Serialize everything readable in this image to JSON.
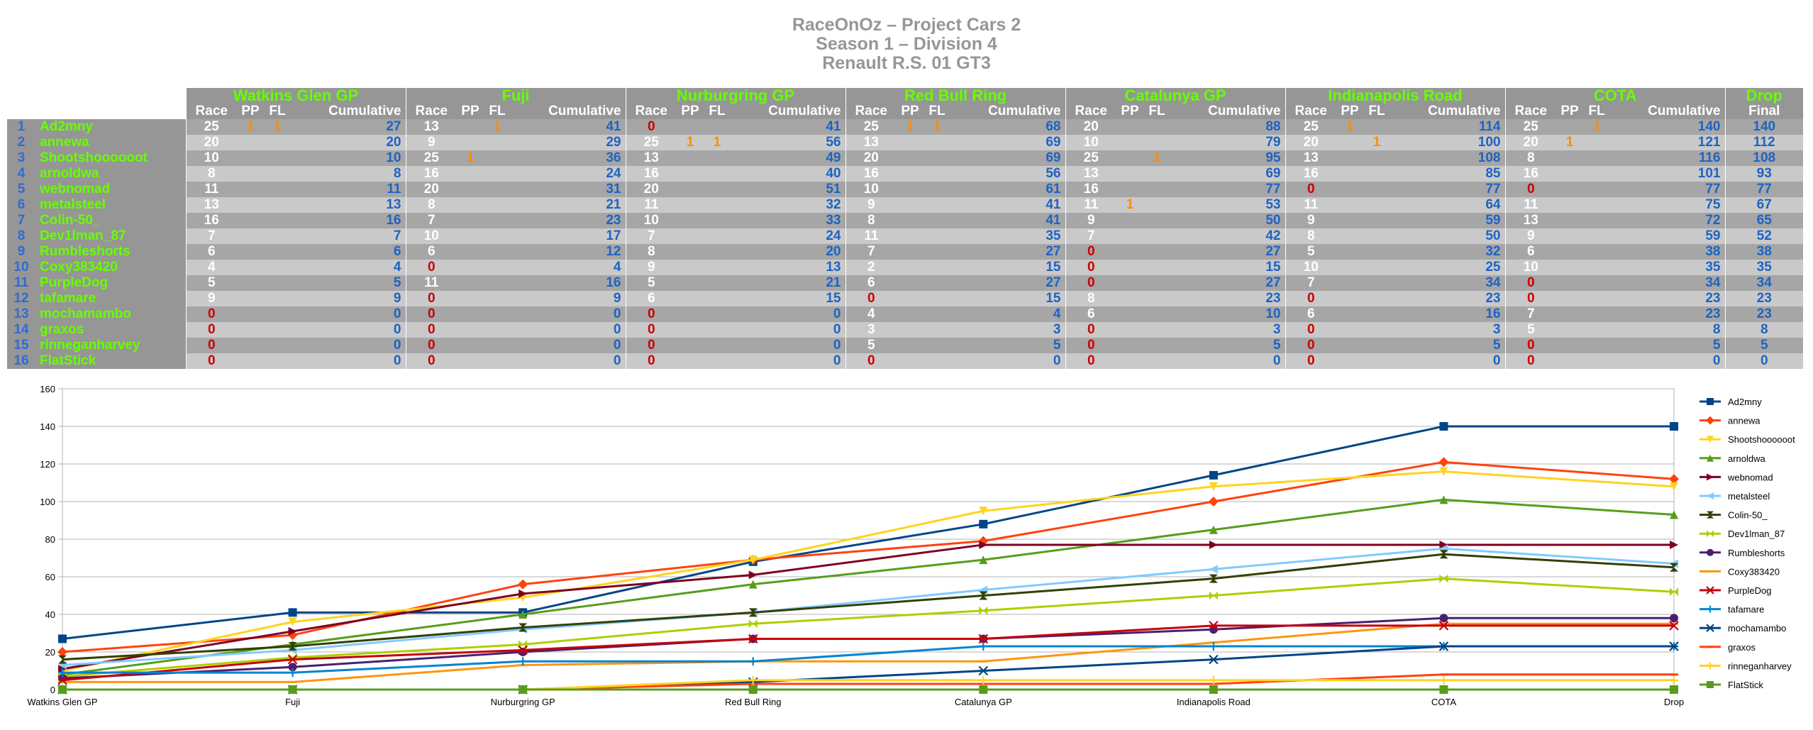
{
  "titles": [
    "RaceOnOz – Project Cars 2",
    "Season 1 – Division 4",
    "Renault R.S. 01 GT3"
  ],
  "table": {
    "events": [
      "Watkins Glen GP",
      "Fuji",
      "Nurburgring GP",
      "Red Bull Ring",
      "Catalunya GP",
      "Indianapolis Road",
      "COTA"
    ],
    "drop_header": "Drop",
    "sub_headers": {
      "race": "Race",
      "pp": "PP",
      "fl": "FL",
      "cumulative": "Cumulative",
      "final": "Final"
    },
    "rows": [
      {
        "pos": "1",
        "name": "Ad2mny",
        "events": [
          [
            "25",
            "1",
            "1",
            "27"
          ],
          [
            "13",
            "",
            "1",
            "41"
          ],
          [
            "0",
            "",
            "",
            "41"
          ],
          [
            "25",
            "1",
            "1",
            "68"
          ],
          [
            "20",
            "",
            "",
            "88"
          ],
          [
            "25",
            "1",
            "",
            "114"
          ],
          [
            "25",
            "",
            "1",
            "140"
          ]
        ],
        "final": "140"
      },
      {
        "pos": "2",
        "name": "annewa",
        "events": [
          [
            "20",
            "",
            "",
            "20"
          ],
          [
            "9",
            "",
            "",
            "29"
          ],
          [
            "25",
            "1",
            "1",
            "56"
          ],
          [
            "13",
            "",
            "",
            "69"
          ],
          [
            "10",
            "",
            "",
            "79"
          ],
          [
            "20",
            "",
            "1",
            "100"
          ],
          [
            "20",
            "1",
            "",
            "121"
          ]
        ],
        "final": "112"
      },
      {
        "pos": "3",
        "name": "Shootshoooooot",
        "events": [
          [
            "10",
            "",
            "",
            "10"
          ],
          [
            "25",
            "1",
            "",
            "36"
          ],
          [
            "13",
            "",
            "",
            "49"
          ],
          [
            "20",
            "",
            "",
            "69"
          ],
          [
            "25",
            "",
            "1",
            "95"
          ],
          [
            "13",
            "",
            "",
            "108"
          ],
          [
            "8",
            "",
            "",
            "116"
          ]
        ],
        "final": "108"
      },
      {
        "pos": "4",
        "name": "arnoldwa",
        "events": [
          [
            "8",
            "",
            "",
            "8"
          ],
          [
            "16",
            "",
            "",
            "24"
          ],
          [
            "16",
            "",
            "",
            "40"
          ],
          [
            "16",
            "",
            "",
            "56"
          ],
          [
            "13",
            "",
            "",
            "69"
          ],
          [
            "16",
            "",
            "",
            "85"
          ],
          [
            "16",
            "",
            "",
            "101"
          ]
        ],
        "final": "93"
      },
      {
        "pos": "5",
        "name": "webnomad",
        "events": [
          [
            "11",
            "",
            "",
            "11"
          ],
          [
            "20",
            "",
            "",
            "31"
          ],
          [
            "20",
            "",
            "",
            "51"
          ],
          [
            "10",
            "",
            "",
            "61"
          ],
          [
            "16",
            "",
            "",
            "77"
          ],
          [
            "0",
            "",
            "",
            "77"
          ],
          [
            "0",
            "",
            "",
            "77"
          ]
        ],
        "final": "77"
      },
      {
        "pos": "6",
        "name": "metalsteel",
        "events": [
          [
            "13",
            "",
            "",
            "13"
          ],
          [
            "8",
            "",
            "",
            "21"
          ],
          [
            "11",
            "",
            "",
            "32"
          ],
          [
            "9",
            "",
            "",
            "41"
          ],
          [
            "11",
            "1",
            "",
            "53"
          ],
          [
            "11",
            "",
            "",
            "64"
          ],
          [
            "11",
            "",
            "",
            "75"
          ]
        ],
        "final": "67"
      },
      {
        "pos": "7",
        "name": "Colin-50_",
        "events": [
          [
            "16",
            "",
            "",
            "16"
          ],
          [
            "7",
            "",
            "",
            "23"
          ],
          [
            "10",
            "",
            "",
            "33"
          ],
          [
            "8",
            "",
            "",
            "41"
          ],
          [
            "9",
            "",
            "",
            "50"
          ],
          [
            "9",
            "",
            "",
            "59"
          ],
          [
            "13",
            "",
            "",
            "72"
          ]
        ],
        "final": "65"
      },
      {
        "pos": "8",
        "name": "Dev1lman_87",
        "events": [
          [
            "7",
            "",
            "",
            "7"
          ],
          [
            "10",
            "",
            "",
            "17"
          ],
          [
            "7",
            "",
            "",
            "24"
          ],
          [
            "11",
            "",
            "",
            "35"
          ],
          [
            "7",
            "",
            "",
            "42"
          ],
          [
            "8",
            "",
            "",
            "50"
          ],
          [
            "9",
            "",
            "",
            "59"
          ]
        ],
        "final": "52"
      },
      {
        "pos": "9",
        "name": "Rumbleshorts",
        "events": [
          [
            "6",
            "",
            "",
            "6"
          ],
          [
            "6",
            "",
            "",
            "12"
          ],
          [
            "8",
            "",
            "",
            "20"
          ],
          [
            "7",
            "",
            "",
            "27"
          ],
          [
            "0",
            "",
            "",
            "27"
          ],
          [
            "5",
            "",
            "",
            "32"
          ],
          [
            "6",
            "",
            "",
            "38"
          ]
        ],
        "final": "38"
      },
      {
        "pos": "10",
        "name": "Coxy383420",
        "events": [
          [
            "4",
            "",
            "",
            "4"
          ],
          [
            "0",
            "",
            "",
            "4"
          ],
          [
            "9",
            "",
            "",
            "13"
          ],
          [
            "2",
            "",
            "",
            "15"
          ],
          [
            "0",
            "",
            "",
            "15"
          ],
          [
            "10",
            "",
            "",
            "25"
          ],
          [
            "10",
            "",
            "",
            "35"
          ]
        ],
        "final": "35"
      },
      {
        "pos": "11",
        "name": "PurpleDog",
        "events": [
          [
            "5",
            "",
            "",
            "5"
          ],
          [
            "11",
            "",
            "",
            "16"
          ],
          [
            "5",
            "",
            "",
            "21"
          ],
          [
            "6",
            "",
            "",
            "27"
          ],
          [
            "0",
            "",
            "",
            "27"
          ],
          [
            "7",
            "",
            "",
            "34"
          ],
          [
            "0",
            "",
            "",
            "34"
          ]
        ],
        "final": "34"
      },
      {
        "pos": "12",
        "name": "tafamare",
        "events": [
          [
            "9",
            "",
            "",
            "9"
          ],
          [
            "0",
            "",
            "",
            "9"
          ],
          [
            "6",
            "",
            "",
            "15"
          ],
          [
            "0",
            "",
            "",
            "15"
          ],
          [
            "8",
            "",
            "",
            "23"
          ],
          [
            "0",
            "",
            "",
            "23"
          ],
          [
            "0",
            "",
            "",
            "23"
          ]
        ],
        "final": "23"
      },
      {
        "pos": "13",
        "name": "mochamambo",
        "events": [
          [
            "0",
            "",
            "",
            "0"
          ],
          [
            "0",
            "",
            "",
            "0"
          ],
          [
            "0",
            "",
            "",
            "0"
          ],
          [
            "4",
            "",
            "",
            "4"
          ],
          [
            "6",
            "",
            "",
            "10"
          ],
          [
            "6",
            "",
            "",
            "16"
          ],
          [
            "7",
            "",
            "",
            "23"
          ]
        ],
        "final": "23"
      },
      {
        "pos": "14",
        "name": "graxos",
        "events": [
          [
            "0",
            "",
            "",
            "0"
          ],
          [
            "0",
            "",
            "",
            "0"
          ],
          [
            "0",
            "",
            "",
            "0"
          ],
          [
            "3",
            "",
            "",
            "3"
          ],
          [
            "0",
            "",
            "",
            "3"
          ],
          [
            "0",
            "",
            "",
            "3"
          ],
          [
            "5",
            "",
            "",
            "8"
          ]
        ],
        "final": "8"
      },
      {
        "pos": "15",
        "name": "rinneganharvey",
        "events": [
          [
            "0",
            "",
            "",
            "0"
          ],
          [
            "0",
            "",
            "",
            "0"
          ],
          [
            "0",
            "",
            "",
            "0"
          ],
          [
            "5",
            "",
            "",
            "5"
          ],
          [
            "0",
            "",
            "",
            "5"
          ],
          [
            "0",
            "",
            "",
            "5"
          ],
          [
            "0",
            "",
            "",
            "5"
          ]
        ],
        "final": "5"
      },
      {
        "pos": "16",
        "name": "FlatStick",
        "events": [
          [
            "0",
            "",
            "",
            "0"
          ],
          [
            "0",
            "",
            "",
            "0"
          ],
          [
            "0",
            "",
            "",
            "0"
          ],
          [
            "0",
            "",
            "",
            "0"
          ],
          [
            "0",
            "",
            "",
            "0"
          ],
          [
            "0",
            "",
            "",
            "0"
          ],
          [
            "0",
            "",
            "",
            "0"
          ]
        ],
        "final": "0"
      }
    ]
  },
  "chart_data": {
    "type": "line",
    "x": [
      "Watkins Glen GP",
      "Fuji",
      "Nurburgring GP",
      "Red Bull Ring",
      "Catalunya GP",
      "Indianapolis Road",
      "COTA",
      "Drop"
    ],
    "ylim": [
      0,
      160
    ],
    "yticks": [
      0,
      20,
      40,
      60,
      80,
      100,
      120,
      140,
      160
    ],
    "grid": true,
    "legend": "right",
    "series": [
      {
        "name": "Ad2mny",
        "values": [
          27,
          41,
          41,
          68,
          88,
          114,
          140,
          140
        ],
        "color": "#004586",
        "marker": "square"
      },
      {
        "name": "annewa",
        "values": [
          20,
          29,
          56,
          69,
          79,
          100,
          121,
          112
        ],
        "color": "#ff420e",
        "marker": "diamond"
      },
      {
        "name": "Shootshoooooot",
        "values": [
          10,
          36,
          49,
          69,
          95,
          108,
          116,
          108
        ],
        "color": "#ffd320",
        "marker": "triangle-down"
      },
      {
        "name": "arnoldwa",
        "values": [
          8,
          24,
          40,
          56,
          69,
          85,
          101,
          93
        ],
        "color": "#579d1c",
        "marker": "triangle-up"
      },
      {
        "name": "webnomad",
        "values": [
          11,
          31,
          51,
          61,
          77,
          77,
          77,
          77
        ],
        "color": "#7e0021",
        "marker": "triangle-right"
      },
      {
        "name": "metalsteel",
        "values": [
          13,
          21,
          32,
          41,
          53,
          64,
          75,
          67
        ],
        "color": "#83caff",
        "marker": "triangle-left"
      },
      {
        "name": "Colin-50_",
        "values": [
          16,
          23,
          33,
          41,
          50,
          59,
          72,
          65
        ],
        "color": "#314004",
        "marker": "hourglass"
      },
      {
        "name": "Dev1lman_87",
        "values": [
          7,
          17,
          24,
          35,
          42,
          50,
          59,
          52
        ],
        "color": "#aecf00",
        "marker": "bowtie"
      },
      {
        "name": "Rumbleshorts",
        "values": [
          6,
          12,
          20,
          27,
          27,
          32,
          38,
          38
        ],
        "color": "#4b1f6f",
        "marker": "circle"
      },
      {
        "name": "Coxy383420",
        "values": [
          4,
          4,
          13,
          15,
          15,
          25,
          35,
          35
        ],
        "color": "#ff950e",
        "marker": "dash"
      },
      {
        "name": "PurpleDog",
        "values": [
          5,
          16,
          21,
          27,
          27,
          34,
          34,
          34
        ],
        "color": "#c5000b",
        "marker": "x"
      },
      {
        "name": "tafamare",
        "values": [
          9,
          9,
          15,
          15,
          23,
          23,
          23,
          23
        ],
        "color": "#0084d1",
        "marker": "plus"
      },
      {
        "name": "mochamambo",
        "values": [
          0,
          0,
          0,
          4,
          10,
          16,
          23,
          23
        ],
        "color": "#004586",
        "marker": "asterisk"
      },
      {
        "name": "graxos",
        "values": [
          0,
          0,
          0,
          3,
          3,
          3,
          8,
          8
        ],
        "color": "#ff420e",
        "marker": "dash"
      },
      {
        "name": "rinneganharvey",
        "values": [
          0,
          0,
          0,
          5,
          5,
          5,
          5,
          5
        ],
        "color": "#ffd320",
        "marker": "plus"
      },
      {
        "name": "FlatStick",
        "values": [
          0,
          0,
          0,
          0,
          0,
          0,
          0,
          0
        ],
        "color": "#579d1c",
        "marker": "square"
      }
    ]
  }
}
